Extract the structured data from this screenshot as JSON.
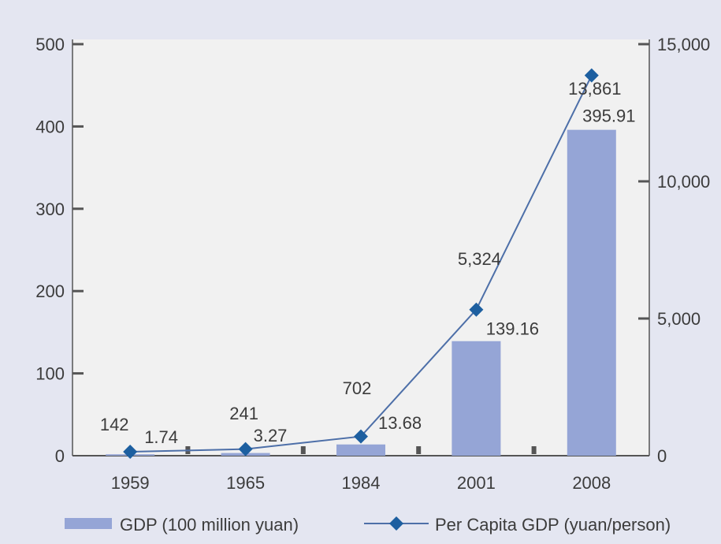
{
  "chart_data": {
    "type": "bar",
    "categories": [
      "1959",
      "1965",
      "1984",
      "2001",
      "2008"
    ],
    "title": "",
    "xlabel": "",
    "ylabel": "",
    "ylim": [
      0,
      500
    ],
    "y2lim": [
      0,
      15000
    ],
    "yticks": [
      "0",
      "100",
      "200",
      "300",
      "400",
      "500"
    ],
    "y2ticks": [
      "0",
      "5,000",
      "10,000",
      "15,000"
    ],
    "grid": false,
    "legend_position": "bottom",
    "series": [
      {
        "name": "GDP (100 million yuan)",
        "kind": "bar",
        "axis": "left",
        "values": [
          1.74,
          3.27,
          13.68,
          139.16,
          395.91
        ],
        "labels": [
          "1.74",
          "3.27",
          "13.68",
          "139.16",
          "395.91"
        ],
        "color": "#95a5d6"
      },
      {
        "name": "Per Capita GDP (yuan/person)",
        "kind": "line",
        "axis": "right",
        "values": [
          142,
          241,
          702,
          5324,
          13861
        ],
        "labels": [
          "142",
          "241",
          "702",
          "5,324",
          "13,861"
        ],
        "color": "#1d5fa0",
        "line_color": "#4d6fa8"
      }
    ]
  }
}
